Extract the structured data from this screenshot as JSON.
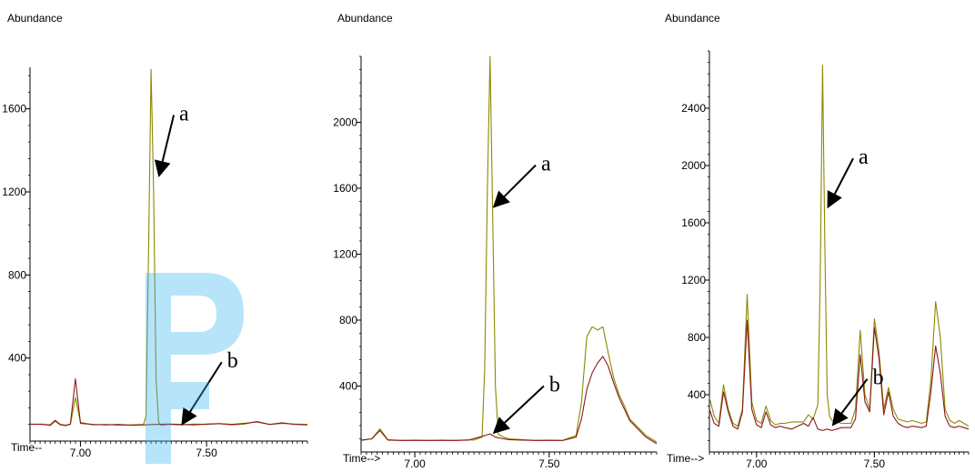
{
  "colors": {
    "series_a": "#8a8a00",
    "series_b": "#8b1a1a",
    "arrow": "#000000",
    "watermark": "#33b5f0"
  },
  "chart_data": [
    {
      "type": "line",
      "ylabel": "Abundance",
      "xlabel": "Time--",
      "xlim": [
        6.8,
        7.9
      ],
      "ylim": [
        0,
        1800
      ],
      "x_ticks": [
        7.0,
        7.5
      ],
      "x_tick_labels": [
        "7.00",
        "7.50"
      ],
      "y_ticks": [
        400,
        800,
        1200,
        1600
      ],
      "y_tick_labels": [
        "400",
        "800",
        "1200",
        "1600"
      ],
      "series": [
        {
          "color": "#8a8a00",
          "x": [
            6.8,
            6.85,
            6.88,
            6.9,
            6.92,
            6.94,
            6.96,
            6.98,
            7.0,
            7.05,
            7.1,
            7.15,
            7.2,
            7.25,
            7.26,
            7.27,
            7.28,
            7.29,
            7.3,
            7.31,
            7.32,
            7.35,
            7.4,
            7.45,
            7.5,
            7.55,
            7.6,
            7.65,
            7.7,
            7.75,
            7.8,
            7.85,
            7.9
          ],
          "y": [
            80,
            82,
            75,
            95,
            78,
            74,
            80,
            210,
            90,
            78,
            80,
            76,
            78,
            80,
            120,
            900,
            1790,
            1200,
            300,
            90,
            76,
            80,
            78,
            82,
            80,
            84,
            78,
            82,
            95,
            80,
            85,
            82,
            80
          ]
        },
        {
          "color": "#8b1a1a",
          "x": [
            6.8,
            6.85,
            6.88,
            6.9,
            6.92,
            6.94,
            6.96,
            6.98,
            7.0,
            7.05,
            7.1,
            7.15,
            7.2,
            7.25,
            7.3,
            7.35,
            7.4,
            7.45,
            7.5,
            7.55,
            7.6,
            7.65,
            7.7,
            7.75,
            7.8,
            7.85,
            7.9
          ],
          "y": [
            82,
            80,
            78,
            100,
            80,
            76,
            82,
            300,
            85,
            80,
            78,
            80,
            76,
            78,
            80,
            82,
            80,
            78,
            82,
            84,
            80,
            85,
            92,
            80,
            88,
            80,
            78
          ]
        }
      ],
      "annotations": [
        {
          "text": "a",
          "x": 7.37,
          "y": 1570,
          "tx": 7.31,
          "ty": 1270
        },
        {
          "text": "b",
          "x": 7.56,
          "y": 380,
          "tx": 7.4,
          "ty": 75
        }
      ]
    },
    {
      "type": "line",
      "ylabel": "Abundance",
      "xlabel": "Time-->",
      "xlim": [
        6.8,
        7.9
      ],
      "ylim": [
        0,
        2400
      ],
      "x_ticks": [
        7.0,
        7.5
      ],
      "x_tick_labels": [
        "7.00",
        "7.50"
      ],
      "y_ticks": [
        400,
        800,
        1200,
        1600,
        2000
      ],
      "y_tick_labels": [
        "400",
        "800",
        "1200",
        "1600",
        "2000"
      ],
      "series": [
        {
          "color": "#8a8a00",
          "x": [
            6.8,
            6.84,
            6.87,
            6.9,
            6.95,
            7.0,
            7.05,
            7.1,
            7.15,
            7.2,
            7.22,
            7.25,
            7.26,
            7.27,
            7.28,
            7.29,
            7.3,
            7.31,
            7.33,
            7.35,
            7.4,
            7.45,
            7.5,
            7.55,
            7.6,
            7.62,
            7.64,
            7.66,
            7.68,
            7.7,
            7.72,
            7.74,
            7.76,
            7.78,
            7.8,
            7.83,
            7.86,
            7.9
          ],
          "y": [
            70,
            80,
            140,
            75,
            70,
            72,
            70,
            72,
            70,
            74,
            72,
            90,
            500,
            1600,
            2400,
            1400,
            400,
            110,
            90,
            80,
            75,
            70,
            72,
            70,
            100,
            300,
            700,
            760,
            740,
            760,
            600,
            450,
            350,
            280,
            200,
            150,
            100,
            60
          ]
        },
        {
          "color": "#8b1a1a",
          "x": [
            6.8,
            6.84,
            6.87,
            6.9,
            6.95,
            7.0,
            7.05,
            7.1,
            7.15,
            7.2,
            7.25,
            7.27,
            7.28,
            7.3,
            7.33,
            7.35,
            7.4,
            7.45,
            7.5,
            7.55,
            7.6,
            7.62,
            7.64,
            7.66,
            7.68,
            7.7,
            7.72,
            7.74,
            7.76,
            7.78,
            7.8,
            7.83,
            7.86,
            7.9
          ],
          "y": [
            72,
            80,
            130,
            72,
            70,
            70,
            70,
            70,
            70,
            72,
            95,
            105,
            110,
            90,
            80,
            75,
            72,
            70,
            70,
            70,
            90,
            200,
            380,
            480,
            540,
            580,
            520,
            420,
            330,
            260,
            190,
            140,
            90,
            50
          ]
        }
      ],
      "annotations": [
        {
          "text": "a",
          "x": 7.45,
          "y": 1740,
          "tx": 7.29,
          "ty": 1480
        },
        {
          "text": "b",
          "x": 7.48,
          "y": 400,
          "tx": 7.29,
          "ty": 110
        }
      ]
    },
    {
      "type": "line",
      "ylabel": "Abundance",
      "xlabel": "Time-->",
      "xlim": [
        6.8,
        7.9
      ],
      "ylim": [
        0,
        2800
      ],
      "x_ticks": [
        7.0,
        7.5
      ],
      "x_tick_labels": [
        "7.00",
        "7.50"
      ],
      "y_ticks": [
        400,
        800,
        1200,
        1600,
        2000,
        2400
      ],
      "y_tick_labels": [
        "400",
        "800",
        "1200",
        "1600",
        "2000",
        "2400"
      ],
      "series": [
        {
          "color": "#8a8a00",
          "x": [
            6.8,
            6.82,
            6.84,
            6.86,
            6.88,
            6.9,
            6.92,
            6.94,
            6.96,
            6.98,
            7.0,
            7.02,
            7.04,
            7.06,
            7.08,
            7.1,
            7.12,
            7.15,
            7.2,
            7.22,
            7.24,
            7.26,
            7.27,
            7.28,
            7.29,
            7.3,
            7.31,
            7.32,
            7.34,
            7.36,
            7.4,
            7.42,
            7.44,
            7.46,
            7.48,
            7.5,
            7.52,
            7.54,
            7.56,
            7.58,
            7.6,
            7.62,
            7.64,
            7.66,
            7.7,
            7.72,
            7.74,
            7.76,
            7.78,
            7.8,
            7.82,
            7.84,
            7.86,
            7.88,
            7.9
          ],
          "y": [
            380,
            250,
            200,
            470,
            300,
            200,
            180,
            300,
            1100,
            350,
            220,
            200,
            320,
            220,
            190,
            200,
            200,
            210,
            210,
            260,
            230,
            330,
            1200,
            2700,
            1400,
            400,
            250,
            220,
            210,
            200,
            200,
            300,
            850,
            400,
            300,
            930,
            700,
            300,
            450,
            300,
            230,
            220,
            210,
            220,
            200,
            210,
            500,
            1050,
            800,
            300,
            220,
            200,
            220,
            200,
            180
          ]
        },
        {
          "color": "#8b1a1a",
          "x": [
            6.8,
            6.82,
            6.84,
            6.86,
            6.88,
            6.9,
            6.92,
            6.94,
            6.96,
            6.98,
            7.0,
            7.02,
            7.04,
            7.06,
            7.08,
            7.1,
            7.12,
            7.15,
            7.2,
            7.22,
            7.24,
            7.26,
            7.28,
            7.3,
            7.32,
            7.34,
            7.36,
            7.4,
            7.42,
            7.44,
            7.46,
            7.48,
            7.5,
            7.52,
            7.54,
            7.56,
            7.58,
            7.6,
            7.62,
            7.64,
            7.66,
            7.7,
            7.72,
            7.74,
            7.76,
            7.78,
            7.8,
            7.82,
            7.84,
            7.86,
            7.88,
            7.9
          ],
          "y": [
            300,
            200,
            180,
            420,
            280,
            180,
            160,
            280,
            920,
            300,
            190,
            170,
            280,
            190,
            170,
            180,
            170,
            160,
            200,
            180,
            240,
            160,
            150,
            160,
            150,
            160,
            170,
            170,
            230,
            680,
            350,
            280,
            870,
            650,
            260,
            420,
            250,
            200,
            180,
            170,
            180,
            170,
            180,
            420,
            740,
            550,
            250,
            180,
            170,
            180,
            170,
            160
          ]
        }
      ],
      "annotations": [
        {
          "text": "a",
          "x": 7.41,
          "y": 2050,
          "tx": 7.3,
          "ty": 1700
        },
        {
          "text": "b",
          "x": 7.47,
          "y": 510,
          "tx": 7.32,
          "ty": 180
        }
      ]
    }
  ]
}
